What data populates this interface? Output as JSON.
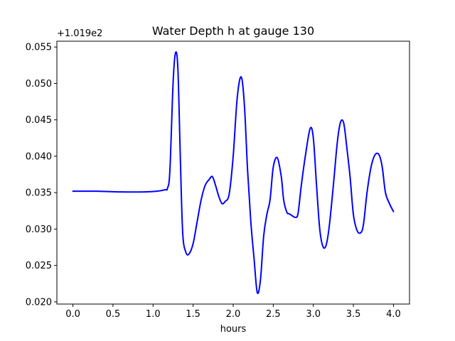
{
  "chart_data": {
    "type": "line",
    "title": "Water Depth h at gauge 130",
    "xlabel": "hours",
    "ylabel": "",
    "y_offset_label": "+1.019e2",
    "xlim": [
      -0.2,
      4.2
    ],
    "ylim": [
      0.0197,
      0.0558
    ],
    "x_ticks": [
      0.0,
      0.5,
      1.0,
      1.5,
      2.0,
      2.5,
      3.0,
      3.5,
      4.0
    ],
    "x_tick_labels": [
      "0.0",
      "0.5",
      "1.0",
      "1.5",
      "2.0",
      "2.5",
      "3.0",
      "3.5",
      "4.0"
    ],
    "y_ticks": [
      0.02,
      0.025,
      0.03,
      0.035,
      0.04,
      0.045,
      0.05,
      0.055
    ],
    "y_tick_labels": [
      "0.020",
      "0.025",
      "0.030",
      "0.035",
      "0.040",
      "0.045",
      "0.050",
      "0.055"
    ],
    "grid": false,
    "line_color": "#0000ff",
    "series": [
      {
        "x": [
          0.0,
          0.3,
          0.6,
          0.9,
          1.05,
          1.15,
          1.18,
          1.21,
          1.25,
          1.28,
          1.31,
          1.34,
          1.37,
          1.41,
          1.45,
          1.5,
          1.55,
          1.6,
          1.65,
          1.7,
          1.74,
          1.78,
          1.82,
          1.86,
          1.9,
          1.95,
          2.0,
          2.05,
          2.1,
          2.14,
          2.18,
          2.22,
          2.26,
          2.3,
          2.34,
          2.38,
          2.42,
          2.46,
          2.5,
          2.55,
          2.6,
          2.63,
          2.67,
          2.7,
          2.74,
          2.78,
          2.81,
          2.85,
          2.9,
          2.96,
          3.0,
          3.04,
          3.08,
          3.12,
          3.16,
          3.2,
          3.25,
          3.3,
          3.34,
          3.38,
          3.42,
          3.46,
          3.5,
          3.55,
          3.6,
          3.63,
          3.67,
          3.72,
          3.77,
          3.82,
          3.86,
          3.9,
          3.95,
          4.0
        ],
        "y": [
          0.0352,
          0.0352,
          0.0351,
          0.0351,
          0.0352,
          0.0354,
          0.0356,
          0.038,
          0.05,
          0.0542,
          0.052,
          0.04,
          0.0295,
          0.0268,
          0.0266,
          0.028,
          0.031,
          0.034,
          0.036,
          0.0368,
          0.0372,
          0.036,
          0.0345,
          0.0335,
          0.0338,
          0.0348,
          0.04,
          0.048,
          0.0509,
          0.047,
          0.038,
          0.031,
          0.026,
          0.0213,
          0.023,
          0.029,
          0.032,
          0.034,
          0.0385,
          0.0398,
          0.0372,
          0.034,
          0.0323,
          0.0321,
          0.0318,
          0.0316,
          0.0322,
          0.036,
          0.04,
          0.0438,
          0.0425,
          0.036,
          0.03,
          0.0276,
          0.0278,
          0.0305,
          0.036,
          0.042,
          0.0447,
          0.0445,
          0.041,
          0.037,
          0.032,
          0.0297,
          0.0296,
          0.031,
          0.035,
          0.0385,
          0.0402,
          0.0402,
          0.0385,
          0.035,
          0.0335,
          0.0324
        ]
      }
    ]
  }
}
